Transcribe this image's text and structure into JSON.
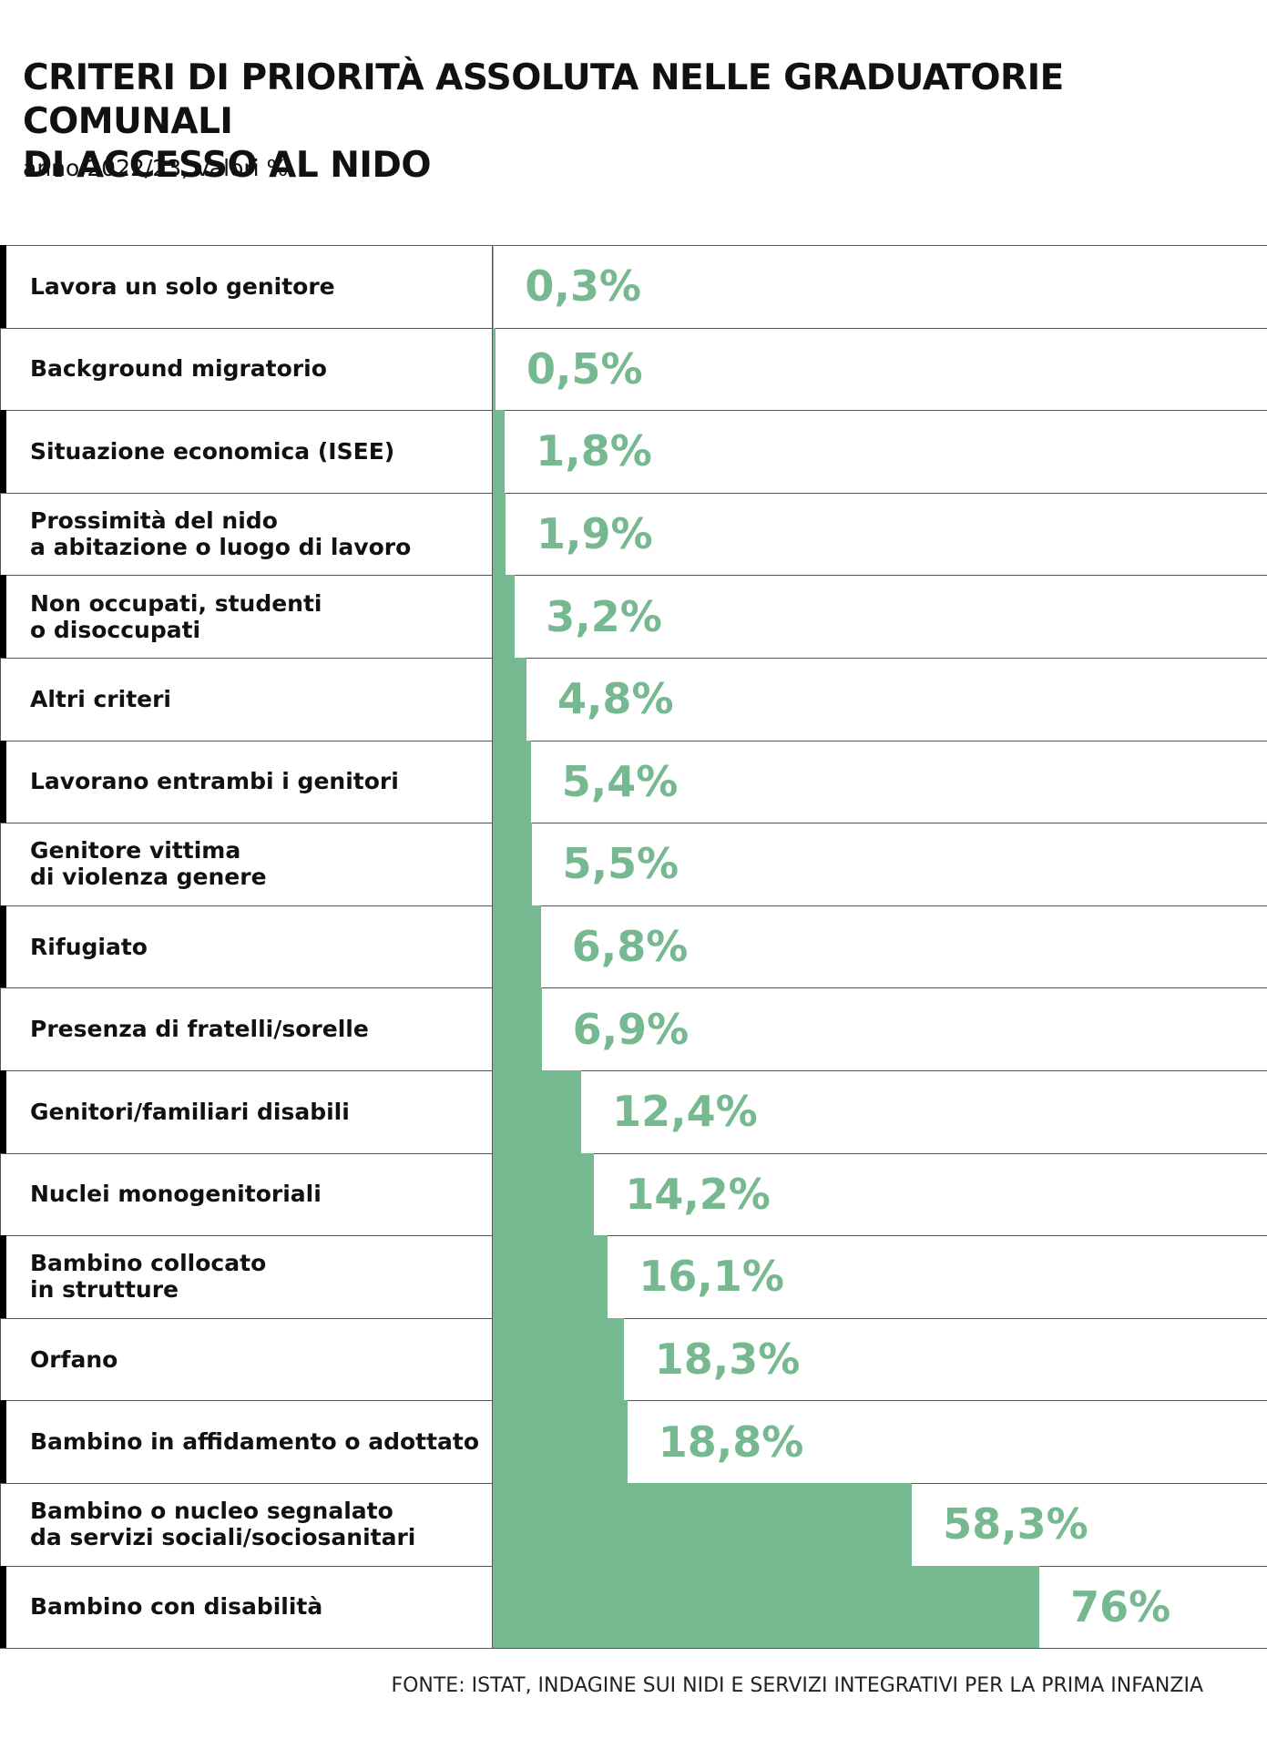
{
  "chart_data": {
    "type": "bar",
    "orientation": "horizontal",
    "title": "CRITERI DI PRIORITÀ ASSOLUTA NELLE GRADUATORIE COMUNALI\nDI ACCESSO AL NIDO",
    "subtitle": "anno 2022/23, valori %",
    "source": "FONTE: ISTAT, INDAGINE SUI NIDI E SERVIZI INTEGRATIVI PER LA PRIMA INFANZIA",
    "categories": [
      "Lavora un solo genitore",
      "Background migratorio",
      "Situazione economica (ISEE)",
      "Prossimità del nido\na abitazione o luogo di lavoro",
      "Non occupati, studenti\no disoccupati",
      "Altri criteri",
      "Lavorano entrambi i genitori",
      "Genitore vittima\ndi violenza genere",
      "Rifugiato",
      "Presenza di fratelli/sorelle",
      "Genitori/familiari disabili",
      "Nuclei monogenitoriali",
      "Bambino collocato\nin strutture",
      "Orfano",
      "Bambino in affidamento o adottato",
      "Bambino o nucleo segnalato\nda servizi sociali/sociosanitari",
      "Bambino con disabilità"
    ],
    "values": [
      0.3,
      0.5,
      1.8,
      1.9,
      3.2,
      4.8,
      5.4,
      5.5,
      6.8,
      6.9,
      12.4,
      14.2,
      16.1,
      18.3,
      18.8,
      58.3,
      76
    ],
    "value_labels": [
      "0,3%",
      "0,5%",
      "1,8%",
      "1,9%",
      "3,2%",
      "4,8%",
      "5,4%",
      "5,5%",
      "6,8%",
      "6,9%",
      "12,4%",
      "14,2%",
      "16,1%",
      "18,3%",
      "18,8%",
      "58,3%",
      "76%"
    ],
    "color": "#76b890",
    "xlim": [
      0,
      100
    ]
  }
}
